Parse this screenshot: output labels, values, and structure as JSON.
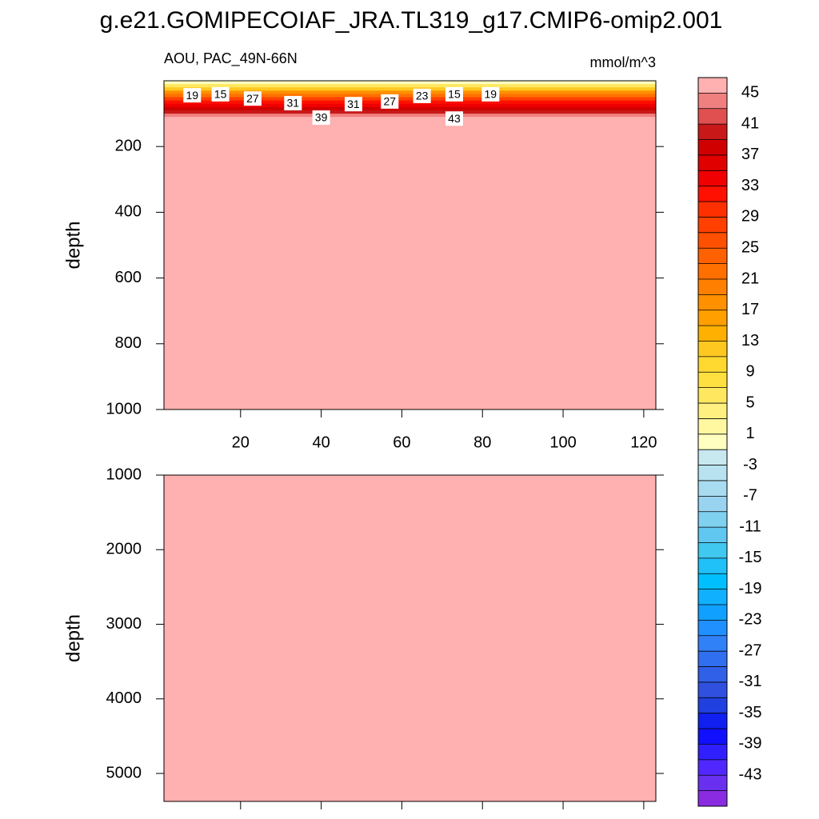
{
  "title": "g.e21.GOMIPECOIAF_JRA.TL319_g17.CMIP6-omip2.001",
  "chart_data": [
    {
      "type": "contour",
      "left_title": "AOU, PAC_49N-66N",
      "right_title": "mmol/m^3",
      "y_label": "depth",
      "xlim": [
        1,
        123
      ],
      "xticks": [
        20,
        40,
        60,
        80,
        100,
        120
      ],
      "x_tick_labels": true,
      "ylim": [
        0,
        1000
      ],
      "yticks": [
        200,
        400,
        600,
        800,
        1000
      ],
      "y_inverted": true,
      "field": {
        "depths": [
          0,
          10,
          20,
          30,
          40,
          50,
          60,
          70,
          80,
          90,
          100,
          110,
          120
        ],
        "values": [
          -2,
          2,
          8,
          15,
          20,
          25,
          30,
          33,
          36,
          39,
          42,
          45,
          46
        ]
      },
      "contour_labels": [
        {
          "x": 8,
          "depth": 44,
          "value": 19
        },
        {
          "x": 15,
          "depth": 41,
          "value": 15
        },
        {
          "x": 23,
          "depth": 54,
          "value": 27
        },
        {
          "x": 33,
          "depth": 68,
          "value": 31
        },
        {
          "x": 40,
          "depth": 112,
          "value": 39
        },
        {
          "x": 48,
          "depth": 71,
          "value": 31
        },
        {
          "x": 57,
          "depth": 63,
          "value": 27
        },
        {
          "x": 65,
          "depth": 46,
          "value": 23
        },
        {
          "x": 73,
          "depth": 41,
          "value": 15
        },
        {
          "x": 82,
          "depth": 41,
          "value": 19
        },
        {
          "x": 73,
          "depth": 115,
          "value": 43
        }
      ]
    },
    {
      "type": "contour",
      "y_label": "depth",
      "xlim": [
        1,
        123
      ],
      "xticks": [
        20,
        40,
        60,
        80,
        100,
        120
      ],
      "x_tick_labels": false,
      "ylim": [
        1000,
        5375
      ],
      "yticks": [
        1000,
        2000,
        3000,
        4000,
        5000
      ],
      "y_inverted": true,
      "field": {
        "depths": [
          1000,
          5375
        ],
        "values": [
          46,
          46
        ]
      }
    }
  ],
  "colorbar": {
    "boundaries": [
      -45,
      -43,
      -41,
      -39,
      -37,
      -35,
      -33,
      -31,
      -29,
      -27,
      -25,
      -23,
      -21,
      -19,
      -17,
      -15,
      -13,
      -11,
      -9,
      -7,
      -5,
      -3,
      -1,
      1,
      3,
      5,
      7,
      9,
      11,
      13,
      15,
      17,
      19,
      21,
      23,
      25,
      27,
      29,
      31,
      33,
      35,
      37,
      39,
      41,
      43,
      45
    ],
    "labels": [
      45,
      41,
      37,
      33,
      29,
      25,
      21,
      17,
      13,
      9,
      5,
      1,
      -3,
      -7,
      -11,
      -15,
      -19,
      -23,
      -27,
      -31,
      -35,
      -39,
      -43
    ],
    "range": [
      -47,
      47
    ],
    "colors": [
      "#8a2be2",
      "#6a30f0",
      "#5028ff",
      "#3020ff",
      "#1010ff",
      "#1020f0",
      "#2040e0",
      "#3050e0",
      "#3060e8",
      "#3070f0",
      "#3080f8",
      "#2090ff",
      "#10a0ff",
      "#10b0ff",
      "#00bfff",
      "#20c0f8",
      "#40c8f0",
      "#60c8f0",
      "#80d0f0",
      "#98d4f0",
      "#a8dcf0",
      "#b8e2f0",
      "#c8e8f0",
      "#ffffc0",
      "#fff8a0",
      "#fff080",
      "#ffe860",
      "#ffe040",
      "#ffd830",
      "#ffc820",
      "#ffb000",
      "#ffa000",
      "#ff9000",
      "#ff8000",
      "#ff7000",
      "#ff6000",
      "#ff5000",
      "#ff4000",
      "#ff3000",
      "#ff1000",
      "#f00000",
      "#e00000",
      "#d00000",
      "#c81818",
      "#e05050",
      "#f08080",
      "#ffb0b0"
    ]
  }
}
